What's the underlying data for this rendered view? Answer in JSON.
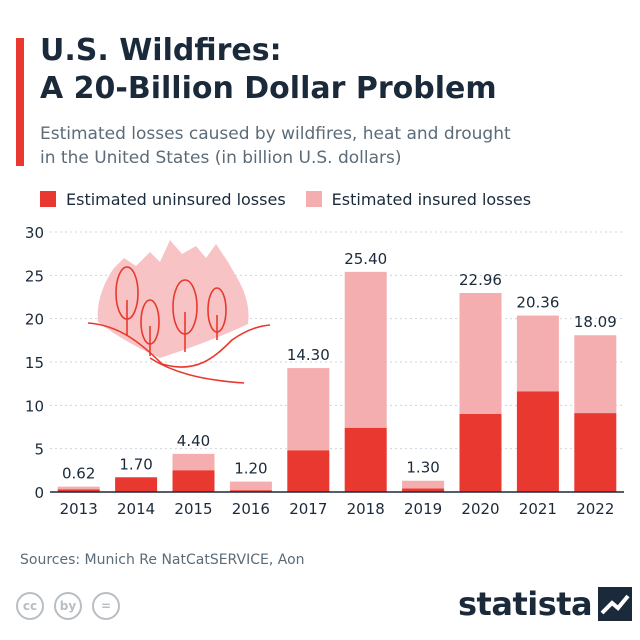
{
  "header": {
    "title_line1": "U.S. Wildfires:",
    "title_line2": "A 20-Billion Dollar Problem",
    "subtitle_line1": "Estimated losses caused by wildfires, heat and drought",
    "subtitle_line2": "in the United States (in billion U.S. dollars)"
  },
  "colors": {
    "uninsured": "#e9382f",
    "insured": "#f5aeb0",
    "accent": "#e9382f",
    "text": "#1b2a3a",
    "muted": "#5b6b78"
  },
  "chart_data": {
    "type": "bar",
    "stacked": true,
    "categories": [
      "2013",
      "2014",
      "2015",
      "2016",
      "2017",
      "2018",
      "2019",
      "2020",
      "2021",
      "2022"
    ],
    "series": [
      {
        "name": "Estimated uninsured losses",
        "values": [
          0.3,
          1.7,
          2.5,
          0.2,
          4.8,
          7.4,
          0.4,
          9.0,
          11.6,
          9.1
        ]
      },
      {
        "name": "Estimated insured losses",
        "values": [
          0.32,
          0.0,
          1.9,
          1.0,
          9.5,
          18.0,
          0.9,
          13.96,
          8.76,
          8.99
        ]
      }
    ],
    "totals": [
      0.62,
      1.7,
      4.4,
      1.2,
      14.3,
      25.4,
      1.3,
      22.96,
      20.36,
      18.09
    ],
    "total_labels": [
      "0.62",
      "1.70",
      "4.40",
      "1.20",
      "14.30",
      "25.40",
      "1.30",
      "22.96",
      "20.36",
      "18.09"
    ],
    "y_ticks": [
      "0",
      "5",
      "10",
      "15",
      "20",
      "25",
      "30"
    ],
    "ylim": [
      0,
      30
    ],
    "grid": true,
    "legend_position": "top-left"
  },
  "footer": {
    "source": "Sources: Munich Re NatCatSERVICE, Aon",
    "brand": "statista",
    "cc_icons": [
      "cc",
      "by",
      "="
    ]
  }
}
